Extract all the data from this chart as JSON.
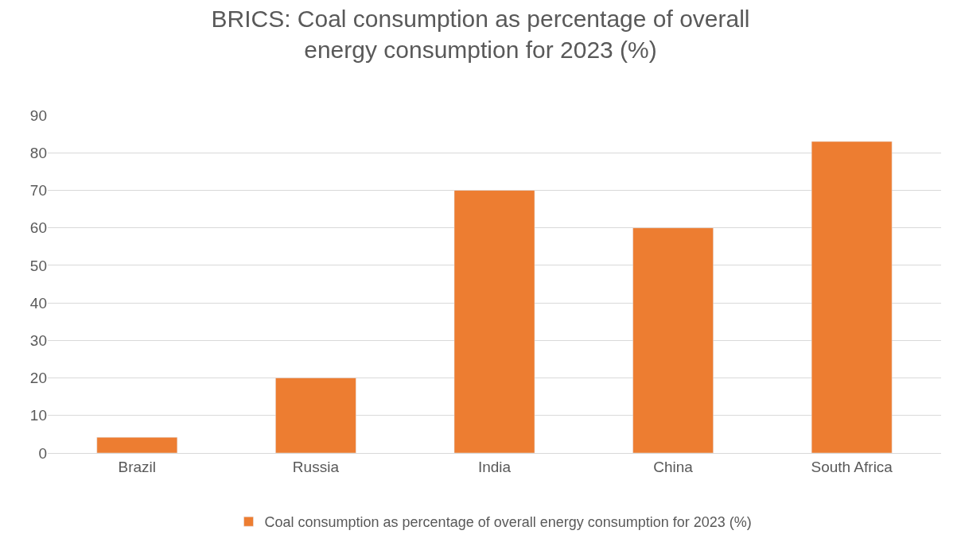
{
  "chart_data": {
    "type": "bar",
    "title": "BRICS: Coal consumption as percentage of overall energy consumption for 2023 (%)",
    "categories": [
      "Brazil",
      "Russia",
      "India",
      "China",
      "South Africa"
    ],
    "series": [
      {
        "name": "Coal consumption as percentage of overall energy consumption for 2023 (%)",
        "color": "#ed7d31",
        "values": [
          4.2,
          20,
          70,
          60,
          83
        ]
      }
    ],
    "ylim": [
      0,
      90
    ],
    "yticks": [
      0,
      10,
      20,
      30,
      40,
      50,
      60,
      70,
      80,
      90
    ],
    "grid": "y",
    "legend": "bottom"
  }
}
